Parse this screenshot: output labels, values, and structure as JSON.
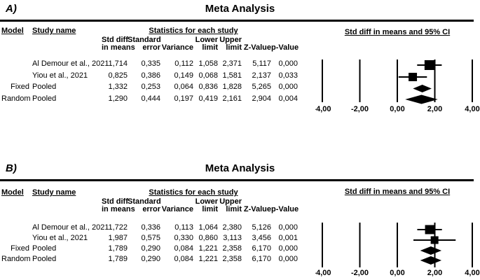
{
  "colors": {
    "ink": "#000000",
    "background": "#ffffff"
  },
  "panels": [
    {
      "panel_label": "A)",
      "title": "Meta Analysis",
      "headers": {
        "model": "Model",
        "study": "Study name",
        "stats_group": "Statistics for each study",
        "ci_group": "Std diff in means and 95% CI"
      },
      "stat_cols": [
        {
          "l1": "Std diff",
          "l2": "in means"
        },
        {
          "l1": "Standard",
          "l2": "error"
        },
        {
          "l1": "",
          "l2": "Variance"
        },
        {
          "l1": "Lower",
          "l2": "limit"
        },
        {
          "l1": "Upper",
          "l2": "limit"
        },
        {
          "l1": "",
          "l2": "Z-Value"
        },
        {
          "l1": "",
          "l2": "p-Value"
        }
      ],
      "rows": [
        {
          "model": "",
          "study": "Al Demour et al., 2021",
          "values": [
            "1,714",
            "0,335",
            "0,112",
            "1,058",
            "2,371",
            "5,117",
            "0,000"
          ]
        },
        {
          "model": "",
          "study": "Yiou et al., 2021",
          "values": [
            "0,825",
            "0,386",
            "0,149",
            "0,068",
            "1,581",
            "2,137",
            "0,033"
          ]
        },
        {
          "model": "Fixed",
          "study": "Pooled",
          "values": [
            "1,332",
            "0,253",
            "0,064",
            "0,836",
            "1,828",
            "5,265",
            "0,000"
          ]
        },
        {
          "model": "Random",
          "study": "Pooled",
          "values": [
            "1,290",
            "0,444",
            "0,197",
            "0,419",
            "2,161",
            "2,904",
            "0,004"
          ]
        }
      ]
    },
    {
      "panel_label": "B)",
      "title": "Meta Analysis",
      "headers": {
        "model": "Model",
        "study": "Study name",
        "stats_group": "Statistics for each study",
        "ci_group": "Std diff in means and 95% CI"
      },
      "stat_cols": [
        {
          "l1": "Std diff",
          "l2": "in means"
        },
        {
          "l1": "Standard",
          "l2": "error"
        },
        {
          "l1": "",
          "l2": "Variance"
        },
        {
          "l1": "Lower",
          "l2": "limit"
        },
        {
          "l1": "Upper",
          "l2": "limit"
        },
        {
          "l1": "",
          "l2": "Z-Value"
        },
        {
          "l1": "",
          "l2": "p-Value"
        }
      ],
      "rows": [
        {
          "model": "",
          "study": "Al Demour et al., 2021",
          "values": [
            "1,722",
            "0,336",
            "0,113",
            "1,064",
            "2,380",
            "5,126",
            "0,000"
          ]
        },
        {
          "model": "",
          "study": "Yiou et al., 2021",
          "values": [
            "1,987",
            "0,575",
            "0,330",
            "0,860",
            "3,113",
            "3,456",
            "0,001"
          ]
        },
        {
          "model": "Fixed",
          "study": "Pooled",
          "values": [
            "1,789",
            "0,290",
            "0,084",
            "1,221",
            "2,358",
            "6,170",
            "0,000"
          ]
        },
        {
          "model": "Random",
          "study": "Pooled",
          "values": [
            "1,789",
            "0,290",
            "0,084",
            "1,221",
            "2,358",
            "6,170",
            "0,000"
          ]
        }
      ]
    }
  ],
  "chart_data": [
    {
      "type": "forest",
      "panel": "A",
      "title": "Meta Analysis",
      "axis_label": "Std diff in means and 95% CI",
      "xlim": [
        -4,
        4
      ],
      "ticks": [
        {
          "value": -4,
          "label": "-4,00"
        },
        {
          "value": -2,
          "label": "-2,00"
        },
        {
          "value": 0,
          "label": "0,00"
        },
        {
          "value": 2,
          "label": "2,00"
        },
        {
          "value": 4,
          "label": "4,00"
        }
      ],
      "studies": [
        {
          "model": "",
          "name": "Al Demour et al., 2021",
          "mean": 1.714,
          "lower": 1.058,
          "upper": 2.371,
          "marker": "square",
          "size": 14
        },
        {
          "model": "",
          "name": "Yiou et al., 2021",
          "mean": 0.825,
          "lower": 0.068,
          "upper": 1.581,
          "marker": "square",
          "size": 12
        },
        {
          "model": "Fixed",
          "name": "Pooled",
          "mean": 1.332,
          "lower": 0.836,
          "upper": 1.828,
          "marker": "diamond",
          "size": 11
        },
        {
          "model": "Random",
          "name": "Pooled",
          "mean": 1.29,
          "lower": 0.419,
          "upper": 2.161,
          "marker": "diamond",
          "size": 13
        }
      ]
    },
    {
      "type": "forest",
      "panel": "B",
      "title": "Meta Analysis",
      "axis_label": "Std diff in means and 95% CI",
      "xlim": [
        -4,
        4
      ],
      "ticks": [
        {
          "value": -4,
          "label": "-4,00"
        },
        {
          "value": -2,
          "label": "-2,00"
        },
        {
          "value": 0,
          "label": "0,00"
        },
        {
          "value": 2,
          "label": "2,00"
        },
        {
          "value": 4,
          "label": "4,00"
        }
      ],
      "studies": [
        {
          "model": "",
          "name": "Al Demour et al., 2021",
          "mean": 1.722,
          "lower": 1.064,
          "upper": 2.38,
          "marker": "square",
          "size": 13
        },
        {
          "model": "",
          "name": "Yiou et al., 2021",
          "mean": 1.987,
          "lower": 0.86,
          "upper": 3.113,
          "marker": "square",
          "size": 11
        },
        {
          "model": "Fixed",
          "name": "Pooled",
          "mean": 1.789,
          "lower": 1.221,
          "upper": 2.358,
          "marker": "diamond",
          "size": 12
        },
        {
          "model": "Random",
          "name": "Pooled",
          "mean": 1.789,
          "lower": 1.221,
          "upper": 2.358,
          "marker": "diamond",
          "size": 12
        }
      ]
    }
  ]
}
